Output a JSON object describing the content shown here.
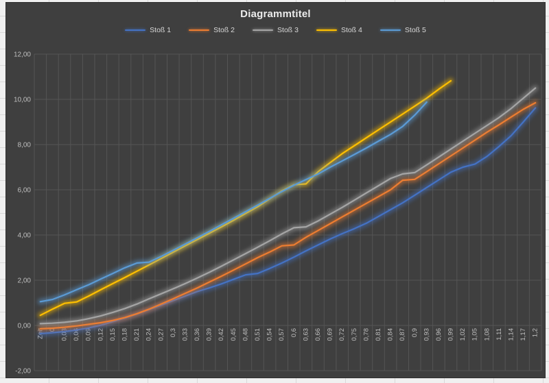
{
  "chart": {
    "theme": "excel-dark",
    "background_color": "#3f3f3f",
    "gridline_color": "#555555",
    "title_color": "#ececec",
    "axis_label_color": "#bfbfbf",
    "legend_text_color": "#d9d9d9"
  },
  "chart_data": {
    "type": "line",
    "title": "Diagrammtitel",
    "legend_position": "top",
    "grid": true,
    "glow_effect": true,
    "y_axis": {
      "min": -2,
      "max": 12,
      "step": 2,
      "tick_labels": [
        "12,00",
        "10,00",
        "8,00",
        "6,00",
        "4,00",
        "2,00",
        "0,00",
        "-2,00"
      ]
    },
    "x_axis": {
      "label_rotation_deg": -90,
      "crosses_at": 0
    },
    "categories": [
      "Zeit",
      "0",
      "0,03",
      "0,06",
      "0,09",
      "0,12",
      "0,15",
      "0,18",
      "0,21",
      "0,24",
      "0,27",
      "0,3",
      "0,33",
      "0,36",
      "0,39",
      "0,42",
      "0,45",
      "0,48",
      "0,51",
      "0,54",
      "0,57",
      "0,6",
      "0,63",
      "0,66",
      "0,69",
      "0,72",
      "0,75",
      "0,78",
      "0,81",
      "0,84",
      "0,87",
      "0,9",
      "0,93",
      "0,96",
      "0,99",
      "1,02",
      "1,05",
      "1,08",
      "1,11",
      "1,14",
      "1,17",
      "1,2"
    ],
    "series": [
      {
        "name": "Stoß 1",
        "color": "#4472c4",
        "values": [
          -0.36,
          -0.32,
          -0.27,
          -0.2,
          -0.11,
          0.01,
          0.17,
          0.33,
          0.51,
          0.7,
          0.9,
          1.1,
          1.3,
          1.5,
          1.66,
          1.84,
          2.04,
          2.24,
          2.3,
          2.52,
          2.76,
          3.02,
          3.3,
          3.56,
          3.82,
          4.06,
          4.28,
          4.52,
          4.82,
          5.12,
          5.42,
          5.76,
          6.1,
          6.44,
          6.78,
          7.0,
          7.14,
          7.48,
          7.92,
          8.4,
          9.0,
          9.62
        ]
      },
      {
        "name": "Stoß 2",
        "color": "#ed7d31",
        "values": [
          -0.15,
          -0.12,
          -0.08,
          -0.02,
          0.05,
          0.12,
          0.22,
          0.35,
          0.52,
          0.72,
          0.95,
          1.18,
          1.42,
          1.66,
          1.92,
          2.18,
          2.45,
          2.72,
          3.0,
          3.25,
          3.52,
          3.56,
          3.9,
          4.2,
          4.5,
          4.8,
          5.1,
          5.4,
          5.7,
          6.0,
          6.42,
          6.46,
          6.8,
          7.15,
          7.5,
          7.85,
          8.2,
          8.55,
          8.88,
          9.22,
          9.56,
          9.85
        ]
      },
      {
        "name": "Stoß 3",
        "color": "#a5a5a5",
        "values": [
          0.08,
          0.1,
          0.14,
          0.2,
          0.3,
          0.42,
          0.58,
          0.75,
          0.95,
          1.18,
          1.4,
          1.62,
          1.85,
          2.1,
          2.35,
          2.62,
          2.9,
          3.18,
          3.46,
          3.75,
          4.05,
          4.32,
          4.36,
          4.62,
          4.92,
          5.22,
          5.54,
          5.86,
          6.18,
          6.5,
          6.7,
          6.76,
          7.1,
          7.45,
          7.8,
          8.15,
          8.5,
          8.85,
          9.2,
          9.6,
          10.05,
          10.5
        ]
      },
      {
        "name": "Stoß 4",
        "color": "#ffc000",
        "values": [
          0.45,
          0.72,
          0.98,
          1.04,
          1.3,
          1.58,
          1.85,
          2.12,
          2.4,
          2.68,
          2.96,
          3.24,
          3.52,
          3.8,
          4.08,
          4.36,
          4.65,
          4.95,
          5.25,
          5.6,
          5.95,
          6.22,
          6.26,
          6.8,
          7.2,
          7.6,
          7.95,
          8.3,
          8.65,
          9.0,
          9.35,
          9.7,
          10.05,
          10.45,
          10.82,
          null,
          null,
          null,
          null,
          null,
          null,
          null
        ]
      },
      {
        "name": "Stoß 5",
        "color": "#5b9bd5",
        "values": [
          1.05,
          1.15,
          1.35,
          1.58,
          1.8,
          2.05,
          2.3,
          2.55,
          2.76,
          2.8,
          3.05,
          3.32,
          3.6,
          3.88,
          4.16,
          4.45,
          4.74,
          5.03,
          5.32,
          5.62,
          5.92,
          6.2,
          6.45,
          6.7,
          7.0,
          7.28,
          7.56,
          7.85,
          8.15,
          8.45,
          8.8,
          9.3,
          9.88,
          null,
          null,
          null,
          null,
          null,
          null,
          null,
          null,
          null
        ]
      }
    ]
  }
}
